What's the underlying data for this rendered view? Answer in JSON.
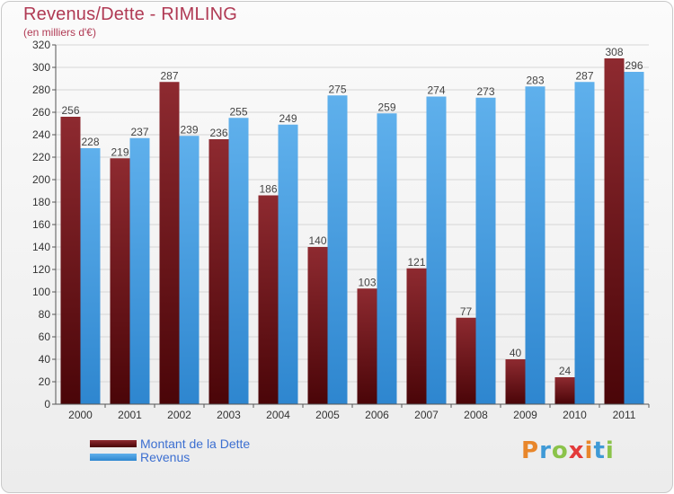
{
  "header": {
    "title": "Revenus/Dette - RIMLING",
    "subtitle": "(en milliers d'€)"
  },
  "logo": {
    "text": "Proxiti"
  },
  "colors": {
    "dette": "#7a1a1f",
    "revenus": "#4aa0e0",
    "title": "#b03a54",
    "legend_text": "#3c6fd1"
  },
  "chart_data": {
    "type": "bar",
    "title": "Revenus/Dette - RIMLING",
    "subtitle": "(en milliers d'€)",
    "categories": [
      "2000",
      "2001",
      "2002",
      "2003",
      "2004",
      "2005",
      "2006",
      "2007",
      "2008",
      "2009",
      "2010",
      "2011"
    ],
    "series": [
      {
        "name": "Montant de la Dette",
        "color": "#7a1a1f",
        "values": [
          256,
          219,
          287,
          236,
          186,
          140,
          103,
          121,
          77,
          40,
          24,
          308
        ]
      },
      {
        "name": "Revenus",
        "color": "#4aa0e0",
        "values": [
          228,
          237,
          239,
          255,
          249,
          275,
          259,
          274,
          273,
          283,
          287,
          296
        ]
      }
    ],
    "ylim": [
      0,
      320
    ],
    "yticks": [
      0,
      20,
      40,
      60,
      80,
      100,
      120,
      140,
      160,
      180,
      200,
      220,
      240,
      260,
      280,
      300,
      320
    ],
    "grid": true,
    "legend_position": "bottom-left"
  }
}
